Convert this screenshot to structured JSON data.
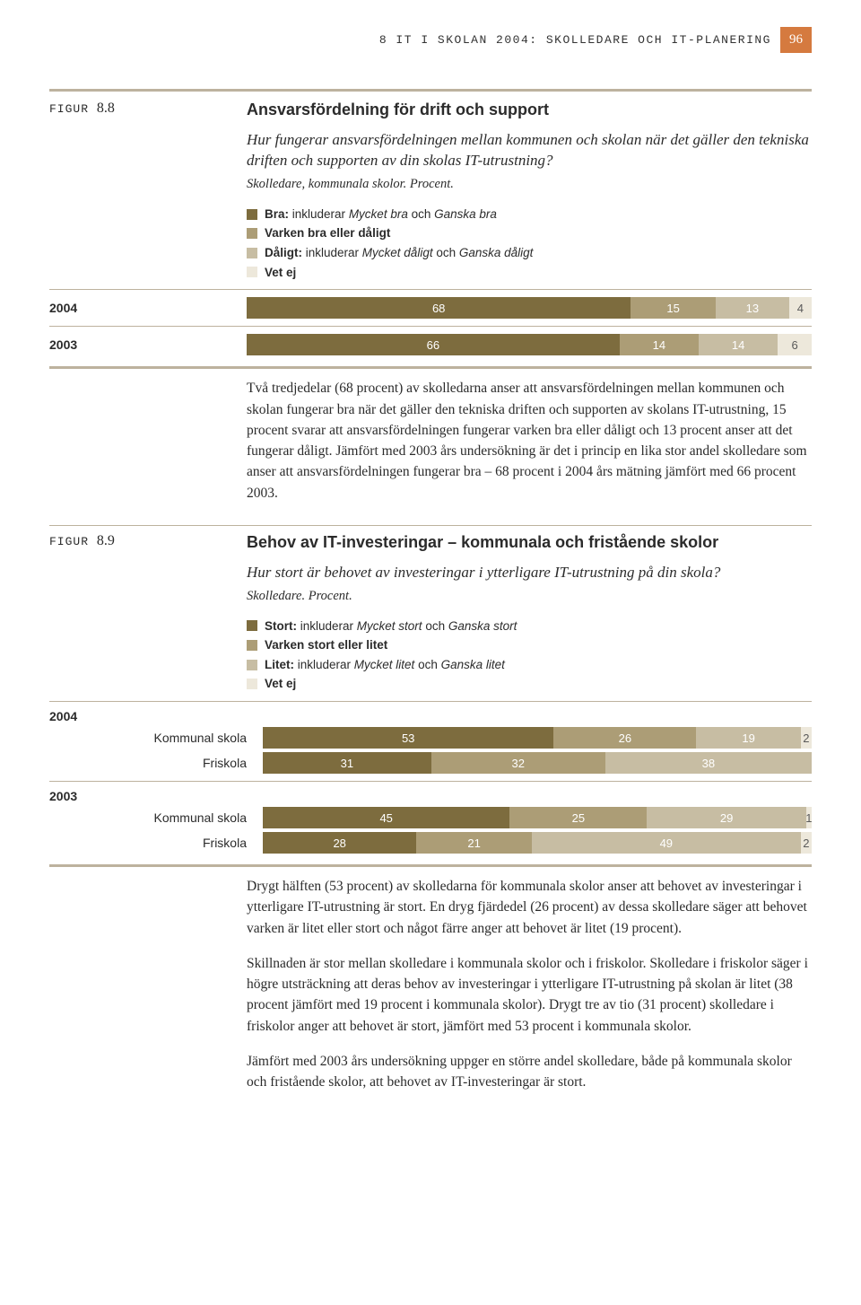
{
  "header_title": "8 IT I SKOLAN 2004: SKOLLEDARE OCH IT-PLANERING",
  "page_number": "96",
  "colors": {
    "c1": "#7d6c3e",
    "c2": "#ac9d76",
    "c3": "#c7bda3",
    "c4": "#ede8db",
    "rule": "#bdb29e"
  },
  "fig88": {
    "label_prefix": "FIGUR ",
    "label_num": "8.8",
    "title": "Ansvarsfördelning för drift och support",
    "question": "Hur fungerar ansvarsfördelningen mellan kommunen och skolan när det gäller den tekniska driften och supporten av din skolas IT-utrustning?",
    "meta": "Skolledare, kommunala skolor. Procent.",
    "legend": [
      {
        "color": "#7d6c3e",
        "bold": "Bra:",
        "rest": " inkluderar ",
        "it1": "Mycket bra",
        "mid": " och ",
        "it2": "Ganska bra"
      },
      {
        "color": "#ac9d76",
        "bold": "Varken bra eller dåligt",
        "rest": "",
        "it1": "",
        "mid": "",
        "it2": ""
      },
      {
        "color": "#c7bda3",
        "bold": "Dåligt:",
        "rest": " inkluderar ",
        "it1": "Mycket dåligt",
        "mid": " och ",
        "it2": "Ganska dåligt"
      },
      {
        "color": "#ede8db",
        "bold": "Vet ej",
        "rest": "",
        "it1": "",
        "mid": "",
        "it2": ""
      }
    ],
    "rows": [
      {
        "label": "2004",
        "segments": [
          {
            "v": 68,
            "c": "#7d6c3e",
            "light": false
          },
          {
            "v": 15,
            "c": "#ac9d76",
            "light": false
          },
          {
            "v": 13,
            "c": "#c7bda3",
            "light": false
          },
          {
            "v": 4,
            "c": "#ede8db",
            "light": true
          }
        ]
      },
      {
        "label": "2003",
        "segments": [
          {
            "v": 66,
            "c": "#7d6c3e",
            "light": false
          },
          {
            "v": 14,
            "c": "#ac9d76",
            "light": false
          },
          {
            "v": 14,
            "c": "#c7bda3",
            "light": false
          },
          {
            "v": 6,
            "c": "#ede8db",
            "light": true
          }
        ]
      }
    ],
    "para": "Två tredjedelar (68 procent) av skolledarna anser att ansvarsfördelningen mellan kommunen och skolan fungerar bra när det gäller den tekniska driften och supporten av skolans IT-utrustning, 15 procent svarar att ansvarsfördelningen fungerar varken bra eller dåligt och 13 procent anser att det fungerar dåligt. Jämfört med 2003 års undersökning är det i princip en lika stor andel skolledare som anser att ansvarsfördelningen fungerar bra – 68 procent i 2004 års mätning jämfört med 66 procent 2003."
  },
  "fig89": {
    "label_prefix": "FIGUR ",
    "label_num": "8.9",
    "title": "Behov av IT-investeringar – kommunala och fristående skolor",
    "question": "Hur stort är behovet av investeringar i ytterligare IT-utrustning på din skola?",
    "meta": "Skolledare. Procent.",
    "legend": [
      {
        "color": "#7d6c3e",
        "bold": "Stort:",
        "rest": " inkluderar ",
        "it1": "Mycket stort",
        "mid": " och ",
        "it2": "Ganska stort"
      },
      {
        "color": "#ac9d76",
        "bold": "Varken stort eller litet",
        "rest": "",
        "it1": "",
        "mid": "",
        "it2": ""
      },
      {
        "color": "#c7bda3",
        "bold": "Litet:",
        "rest": " inkluderar ",
        "it1": "Mycket litet",
        "mid": " och ",
        "it2": "Ganska litet"
      },
      {
        "color": "#ede8db",
        "bold": "Vet ej",
        "rest": "",
        "it1": "",
        "mid": "",
        "it2": ""
      }
    ],
    "groups": [
      {
        "year": "2004",
        "rows": [
          {
            "label": "Kommunal skola",
            "segments": [
              {
                "v": 53,
                "c": "#7d6c3e",
                "light": false
              },
              {
                "v": 26,
                "c": "#ac9d76",
                "light": false
              },
              {
                "v": 19,
                "c": "#c7bda3",
                "light": false
              },
              {
                "v": 2,
                "c": "#ede8db",
                "light": true
              }
            ]
          },
          {
            "label": "Friskola",
            "segments": [
              {
                "v": 31,
                "c": "#7d6c3e",
                "light": false
              },
              {
                "v": 32,
                "c": "#ac9d76",
                "light": false
              },
              {
                "v": 38,
                "c": "#c7bda3",
                "light": false
              }
            ]
          }
        ]
      },
      {
        "year": "2003",
        "rows": [
          {
            "label": "Kommunal skola",
            "segments": [
              {
                "v": 45,
                "c": "#7d6c3e",
                "light": false
              },
              {
                "v": 25,
                "c": "#ac9d76",
                "light": false
              },
              {
                "v": 29,
                "c": "#c7bda3",
                "light": false
              },
              {
                "v": 1,
                "c": "#ede8db",
                "light": true
              }
            ]
          },
          {
            "label": "Friskola",
            "segments": [
              {
                "v": 28,
                "c": "#7d6c3e",
                "light": false
              },
              {
                "v": 21,
                "c": "#ac9d76",
                "light": false
              },
              {
                "v": 49,
                "c": "#c7bda3",
                "light": false
              },
              {
                "v": 2,
                "c": "#ede8db",
                "light": true
              }
            ]
          }
        ]
      }
    ],
    "paras": [
      "Drygt hälften (53 procent) av skolledarna för kommunala skolor anser att behovet av investeringar i ytterligare IT-utrustning är stort. En dryg fjärdedel (26 procent) av dessa skolledare säger att behovet varken är litet eller stort och något färre anger att behovet är litet (19 procent).",
      "Skillnaden är stor mellan skolledare i kommunala skolor och i friskolor. Skolledare i friskolor säger i högre utsträckning att deras behov av investeringar i ytterligare IT-utrustning på skolan är litet (38 procent jämfört med 19 procent i kommunala skolor). Drygt tre av tio (31 procent) skolledare i friskolor anger att behovet är stort, jämfört med 53 procent i kommunala skolor.",
      "Jämfört med 2003 års undersökning uppger en större andel skolledare, både på kommunala skolor och fristående skolor, att behovet av IT-investeringar är stort."
    ]
  }
}
